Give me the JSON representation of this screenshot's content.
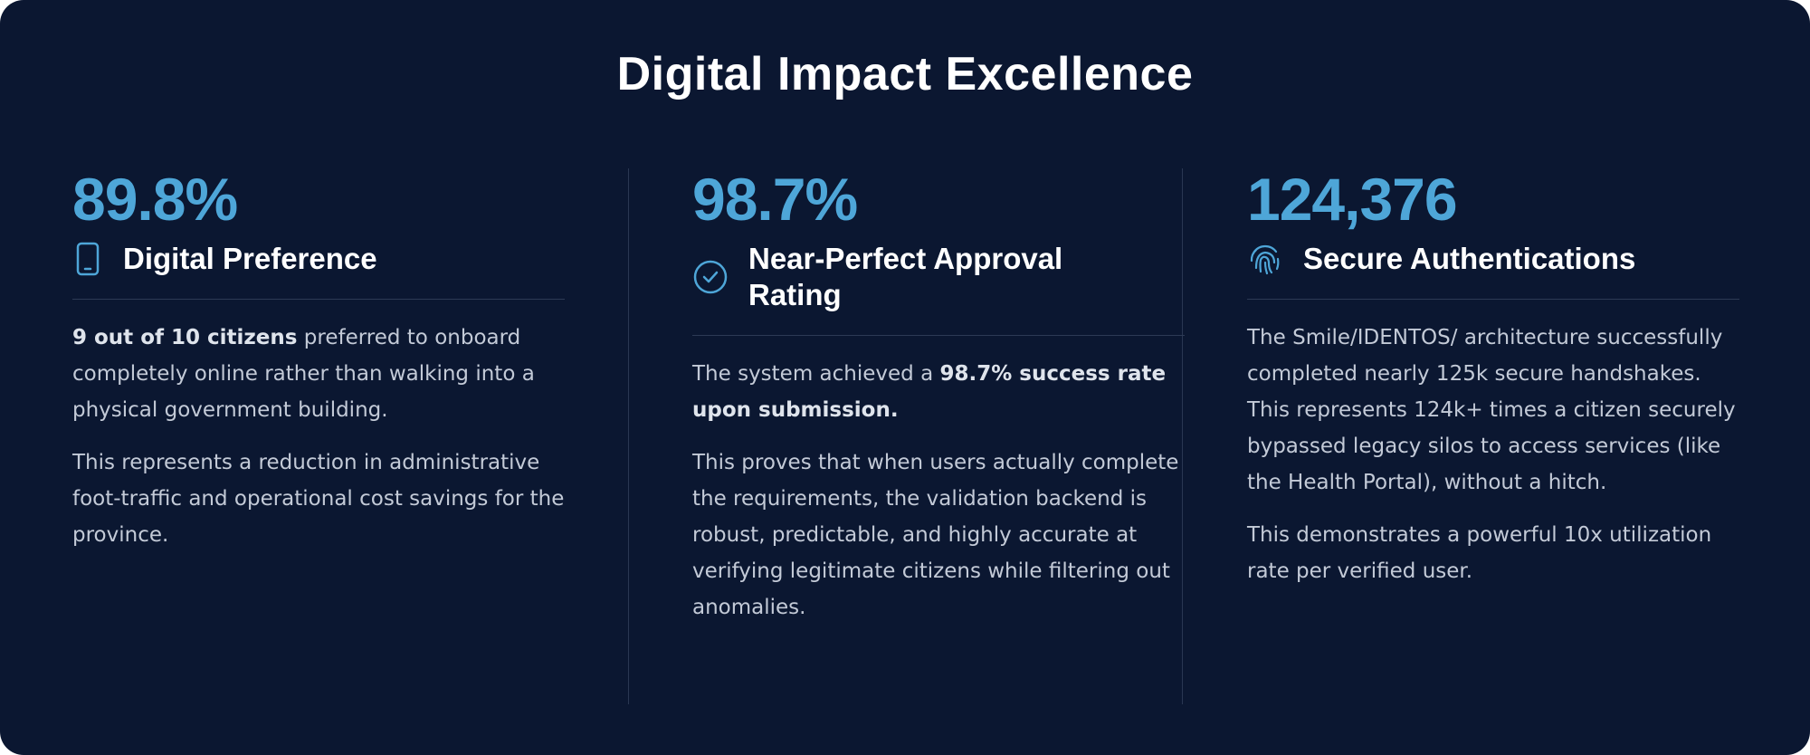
{
  "title": "Digital Impact Excellence",
  "columns": [
    {
      "stat": "89.8%",
      "heading": "Digital Preference",
      "paragraphs": [
        [
          {
            "text": "9 out of 10 citizens",
            "bold": true
          },
          {
            "text": "preferred to onboard completely online rather than walking into a physical government building.",
            "bold": false
          }
        ],
        [
          {
            "text": "This represents a reduction in administrative foot-traffic and operational cost savings for the province.",
            "bold": false
          }
        ]
      ]
    },
    {
      "stat": "98.7%",
      "heading": "Near-Perfect Approval Rating",
      "paragraphs": [
        [
          {
            "text": "The system achieved a",
            "bold": false
          },
          {
            "text": "98.7% success rate upon submission.",
            "bold": true
          }
        ],
        [
          {
            "text": "This proves that when users actually complete the requirements, the validation backend is robust, predictable, and highly accurate at verifying legitimate citizens while filtering out anomalies.",
            "bold": false
          }
        ]
      ]
    },
    {
      "stat": "124,376",
      "heading": "Secure Authentications",
      "paragraphs": [
        [
          {
            "text": "The Smile/IDENTOS/ architecture successfully completed nearly 125k secure handshakes. This represents 124k+ times a citizen securely bypassed legacy silos to access services (like the Health Portal), without a hitch.",
            "bold": false
          }
        ],
        [
          {
            "text": "This demonstrates a powerful 10x utilization rate per verified user.",
            "bold": false
          }
        ]
      ]
    }
  ]
}
